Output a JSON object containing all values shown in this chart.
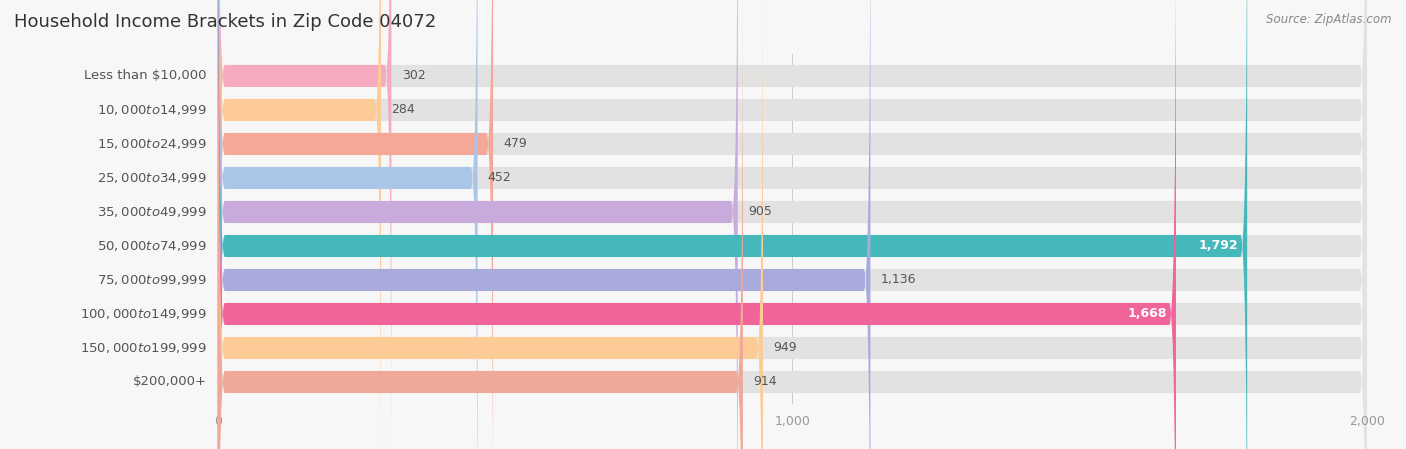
{
  "title": "Household Income Brackets in Zip Code 04072",
  "source": "Source: ZipAtlas.com",
  "categories": [
    "Less than $10,000",
    "$10,000 to $14,999",
    "$15,000 to $24,999",
    "$25,000 to $34,999",
    "$35,000 to $49,999",
    "$50,000 to $74,999",
    "$75,000 to $99,999",
    "$100,000 to $149,999",
    "$150,000 to $199,999",
    "$200,000+"
  ],
  "values": [
    302,
    284,
    479,
    452,
    905,
    1792,
    1136,
    1668,
    949,
    914
  ],
  "bar_colors": [
    "#F7AABF",
    "#FDCB96",
    "#F5A898",
    "#A9C5E8",
    "#C9AADC",
    "#45B8BC",
    "#A9AADC",
    "#F0649A",
    "#FDCB96",
    "#F0A898"
  ],
  "background_color": "#f7f7f7",
  "bar_bg_color": "#e2e2e2",
  "xlim": [
    0,
    2000
  ],
  "title_fontsize": 13,
  "label_fontsize": 9.5,
  "value_fontsize": 9,
  "bar_height": 0.65,
  "value_label_color_dark": "#555555",
  "value_label_color_light": "#ffffff",
  "inside_threshold": 1500
}
